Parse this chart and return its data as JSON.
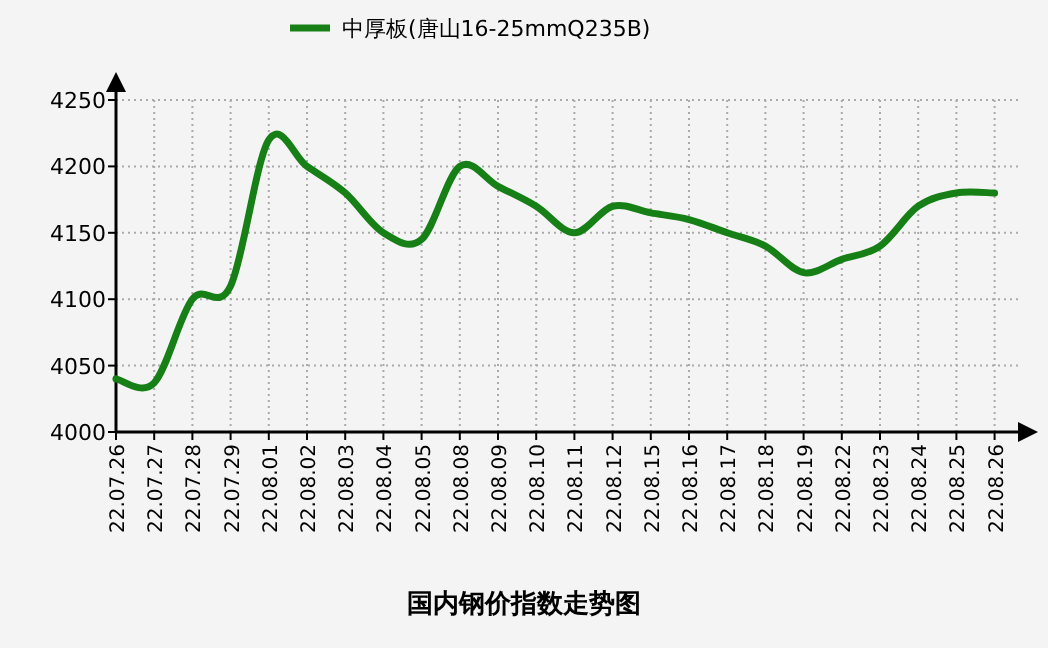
{
  "chart_data": {
    "type": "line",
    "title": "国内钢价指数走势图",
    "categories": [
      "22.07.26",
      "22.07.27",
      "22.07.28",
      "22.07.29",
      "22.08.01",
      "22.08.02",
      "22.08.03",
      "22.08.04",
      "22.08.05",
      "22.08.08",
      "22.08.09",
      "22.08.10",
      "22.08.11",
      "22.08.12",
      "22.08.15",
      "22.08.16",
      "22.08.17",
      "22.08.18",
      "22.08.19",
      "22.08.22",
      "22.08.23",
      "22.08.24",
      "22.08.25",
      "22.08.26"
    ],
    "series": [
      {
        "name": "中厚板(唐山16-25mmQ235B)",
        "color": "#168016",
        "values": [
          4040,
          4037,
          4100,
          4110,
          4220,
          4200,
          4180,
          4150,
          4145,
          4200,
          4185,
          4170,
          4150,
          4170,
          4165,
          4160,
          4150,
          4140,
          4120,
          4130,
          4140,
          4170,
          4180,
          4180
        ]
      }
    ],
    "ylim": [
      4000,
      4250
    ],
    "yticks": [
      4000,
      4050,
      4100,
      4150,
      4200,
      4250
    ],
    "grid": true,
    "legend": "top",
    "marker": "none",
    "line_style": "solid"
  }
}
